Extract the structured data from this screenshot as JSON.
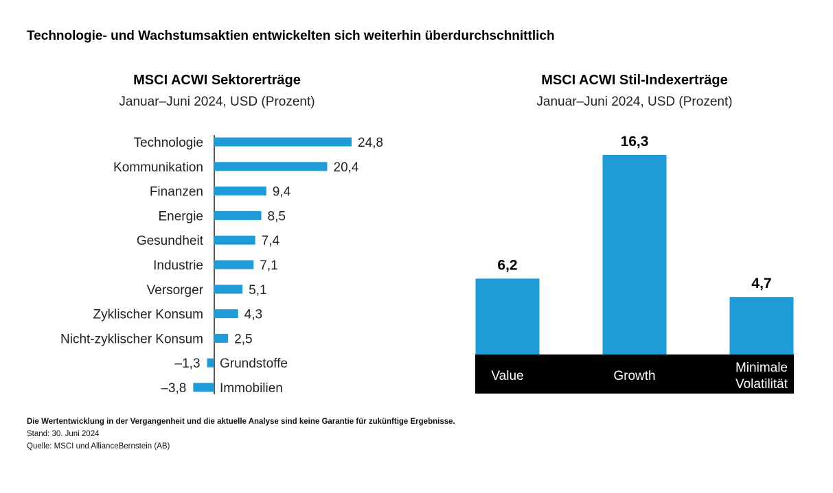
{
  "main_title": "Technologie- und Wachstumsaktien entwickelten sich weiterhin überdurchschnittlich",
  "footnotes": {
    "disclaimer": "Die Wertentwicklung in der Vergangenheit und die aktuelle Analyse sind keine Garantie für zukünftige Ergebnisse.",
    "date": "Stand: 30. Juni 2024",
    "source": "Quelle: MSCI und AllianceBernstein (AB)"
  },
  "colors": {
    "bar": "#1f9bd7",
    "axis_band": "#000000",
    "axis_band_text": "#ffffff"
  },
  "chart_data": [
    {
      "type": "bar",
      "orientation": "horizontal",
      "title": "MSCI ACWI Sektorerträge",
      "subtitle": "Januar–Juni 2024, USD (Prozent)",
      "categories": [
        "Technologie",
        "Kommunikation",
        "Finanzen",
        "Energie",
        "Gesundheit",
        "Industrie",
        "Versorger",
        "Zyklischer Konsum",
        "Nicht-zyklischer Konsum",
        "Grundstoffe",
        "Immobilien"
      ],
      "values": [
        24.8,
        20.4,
        9.4,
        8.5,
        7.4,
        7.1,
        5.1,
        4.3,
        2.5,
        -1.3,
        -3.8
      ],
      "value_labels": [
        "24,8",
        "20,4",
        "9,4",
        "8,5",
        "7,4",
        "7,1",
        "5,1",
        "4,3",
        "2,5",
        "–1,3",
        "–3,8"
      ],
      "xlim": [
        -3.8,
        24.8
      ]
    },
    {
      "type": "bar",
      "orientation": "vertical",
      "title": "MSCI ACWI Stil-Indexerträge",
      "subtitle": "Januar–Juni 2024, USD (Prozent)",
      "categories": [
        "Value",
        "Growth",
        "Minimale Volatilität"
      ],
      "category_lines": [
        [
          "Value"
        ],
        [
          "Growth"
        ],
        [
          "Minimale",
          "Volatilität"
        ]
      ],
      "values": [
        6.2,
        16.3,
        4.7
      ],
      "value_labels": [
        "6,2",
        "16,3",
        "4,7"
      ],
      "ylim": [
        0,
        16.3
      ]
    }
  ]
}
